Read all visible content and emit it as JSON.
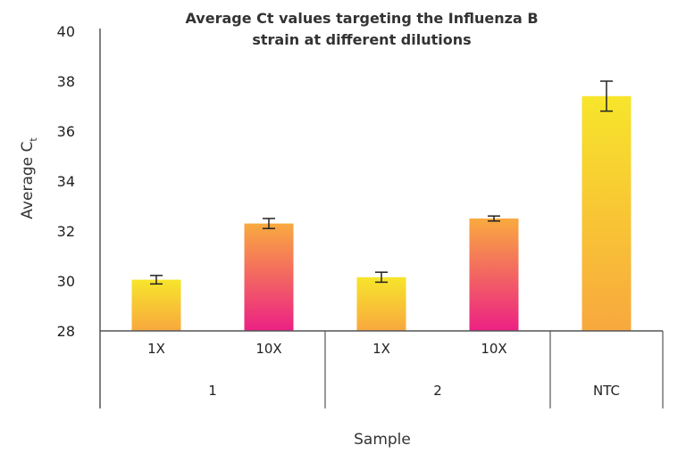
{
  "chart_data": {
    "type": "bar",
    "title": "Average Ct values targeting the Influenza B strain at different dilutions",
    "title_lines": [
      "Average Ct values targeting the Influenza B",
      "strain at different dilutions"
    ],
    "xlabel": "Sample",
    "ylabel": "Average C",
    "ylabel_subscript": "t",
    "ylim": [
      28,
      40
    ],
    "yticks": [
      28,
      30,
      32,
      34,
      36,
      38,
      40
    ],
    "grid": false,
    "categories": [
      "1X",
      "10X",
      "1X",
      "10X",
      ""
    ],
    "groups": [
      {
        "label": "1",
        "span": 2
      },
      {
        "label": "2",
        "span": 2
      },
      {
        "label": "NTC",
        "span": 1
      }
    ],
    "values": [
      30.05,
      32.3,
      30.15,
      32.5,
      37.4
    ],
    "errors": [
      0.17,
      0.2,
      0.2,
      0.1,
      0.6
    ],
    "colors": {
      "1X": [
        "#f7e52b",
        "#f8a83e"
      ],
      "10X": [
        "#f9aa40",
        "#ec2184"
      ],
      "NTC": [
        "#f7e52b",
        "#f8a83e"
      ]
    }
  }
}
